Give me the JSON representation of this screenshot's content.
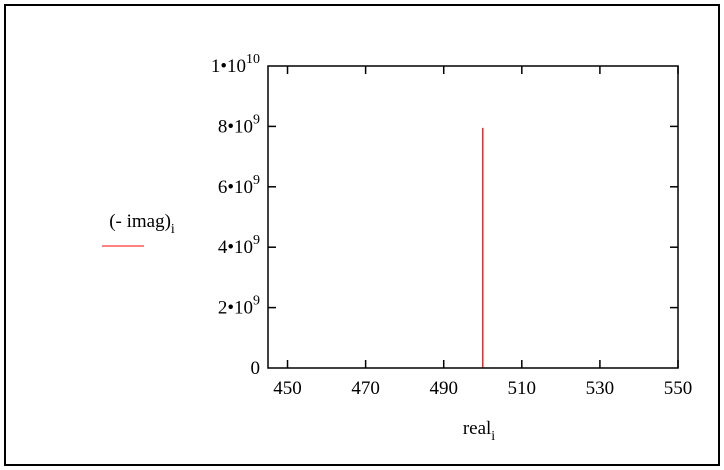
{
  "chart_data": {
    "type": "line",
    "title": "",
    "xlabel": "real",
    "xlabel_subscript": "i",
    "ylabel": "(- imag)",
    "ylabel_subscript": "i",
    "xlim": [
      445,
      550
    ],
    "ylim": [
      0,
      10000000000
    ],
    "x_ticks": [
      {
        "value": 450,
        "label": "450"
      },
      {
        "value": 470,
        "label": "470"
      },
      {
        "value": 490,
        "label": "490"
      },
      {
        "value": 510,
        "label": "510"
      },
      {
        "value": 530,
        "label": "530"
      },
      {
        "value": 550,
        "label": "550"
      }
    ],
    "y_ticks": [
      {
        "value": 0,
        "mantissa": "0",
        "exponent": ""
      },
      {
        "value": 2000000000,
        "mantissa": "2•10",
        "exponent": "9"
      },
      {
        "value": 4000000000,
        "mantissa": "4•10",
        "exponent": "9"
      },
      {
        "value": 6000000000,
        "mantissa": "6•10",
        "exponent": "9"
      },
      {
        "value": 8000000000,
        "mantissa": "8•10",
        "exponent": "9"
      },
      {
        "value": 10000000000,
        "mantissa": "1•10",
        "exponent": "10"
      }
    ],
    "grid": false,
    "legend": "left",
    "series": [
      {
        "name": "(- imag)",
        "color": "#ff0000",
        "x": [
          500,
          500
        ],
        "y": [
          0,
          7950000000
        ]
      }
    ]
  }
}
